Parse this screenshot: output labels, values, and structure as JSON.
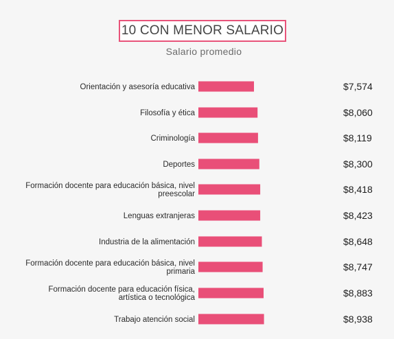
{
  "title": "10 CON MENOR SALARIO",
  "subtitle": "Salario promedio",
  "colors": {
    "bar": "#e94f78",
    "title_border": "#e8537a",
    "background": "#f6f6f6"
  },
  "chart_data": {
    "type": "bar",
    "orientation": "horizontal",
    "title": "10 CON MENOR SALARIO",
    "subtitle": "Salario promedio",
    "categories": [
      "Orientación y asesoría educativa",
      "Filosofía y ética",
      "Criminología",
      "Deportes",
      "Formación docente para educación básica, nivel preescolar",
      "Lenguas extranjeras",
      "Industria de la alimentación",
      "Formación docente para educación básica, nivel primaria",
      "Formación docente para educación física, artística o tecnológica",
      "Trabajo atención social"
    ],
    "category_lines": [
      [
        "Orientación y asesoría educativa"
      ],
      [
        "Filosofía y ética"
      ],
      [
        "Criminología"
      ],
      [
        "Deportes"
      ],
      [
        "Formación docente para educación básica, nivel",
        "preescolar"
      ],
      [
        "Lenguas extranjeras"
      ],
      [
        "Industria de la alimentación"
      ],
      [
        "Formación docente para educación básica, nivel",
        "primaria"
      ],
      [
        "Formación docente para educación física,",
        "artística o tecnológica"
      ],
      [
        "Trabajo atención social"
      ]
    ],
    "values": [
      7574,
      8060,
      8119,
      8300,
      8418,
      8423,
      8648,
      8747,
      8883,
      8938
    ],
    "value_labels": [
      "$7,574",
      "$8,060",
      "$8,119",
      "$8,300",
      "$8,418",
      "$8,423",
      "$8,648",
      "$8,747",
      "$8,883",
      "$8,938"
    ],
    "xlim": [
      0,
      15000
    ],
    "grid": false,
    "legend": "none"
  }
}
